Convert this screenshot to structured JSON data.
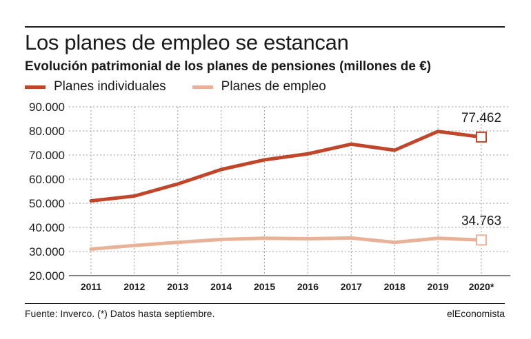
{
  "header": {
    "title": "Los planes de empleo se estancan",
    "subtitle": "Evolución patrimonial de los planes de pensiones (millones de €)"
  },
  "footer": {
    "source": "Fuente: Inverco. (*) Datos hasta septiembre.",
    "brand": "elEconomista"
  },
  "chart_data": {
    "type": "line",
    "title": "Los planes de empleo se estancan",
    "subtitle": "Evolución patrimonial de los planes de pensiones (millones de €)",
    "xlabel": "",
    "ylabel": "",
    "categories": [
      "2011",
      "2012",
      "2013",
      "2014",
      "2015",
      "2016",
      "2017",
      "2018",
      "2019",
      "2020*"
    ],
    "ylim": [
      20000,
      90000
    ],
    "yticks": [
      20000,
      30000,
      40000,
      50000,
      60000,
      70000,
      80000,
      90000
    ],
    "ytick_labels": [
      "20.000",
      "30.000",
      "40.000",
      "50.000",
      "60.000",
      "70.000",
      "80.000",
      "90.000"
    ],
    "grid": true,
    "legend_position": "top-left",
    "series": [
      {
        "name": "Planes individuales",
        "color": "#c0462a",
        "values": [
          51000,
          53000,
          58000,
          64000,
          68000,
          70500,
          74500,
          72000,
          79800,
          77462
        ],
        "end_label": "77.462"
      },
      {
        "name": "Planes de empleo",
        "color": "#e8b298",
        "values": [
          31000,
          32500,
          33800,
          35000,
          35500,
          35300,
          35600,
          33800,
          35500,
          34763
        ],
        "end_label": "34.763"
      }
    ]
  }
}
